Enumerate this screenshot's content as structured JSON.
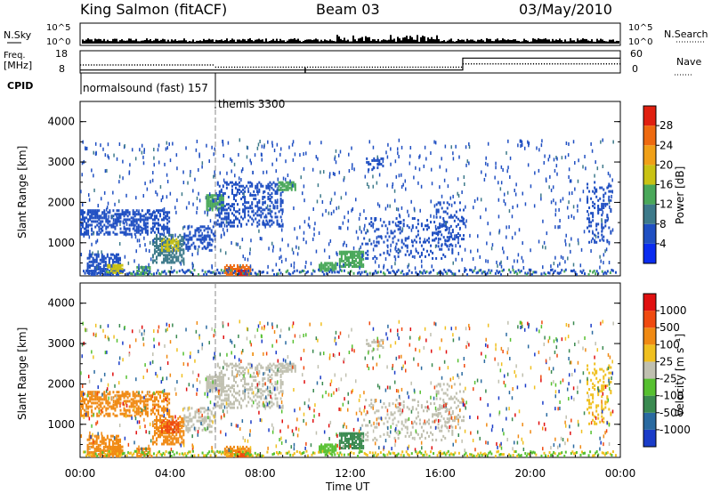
{
  "header": {
    "station": "King Salmon (fitACF)",
    "beam": "Beam 03",
    "date": "03/May/2010"
  },
  "chart_data": [
    {
      "type": "line",
      "panel": "noise",
      "left_label": "N.Sky",
      "right_label": "N.Search",
      "yticks_left": [
        "10^5",
        "10^0"
      ],
      "yticks_right": [
        "10^5",
        "10^0"
      ]
    },
    {
      "type": "line",
      "panel": "frequency",
      "left_label_line1": "Freq.",
      "left_label_line2": "[MHz]",
      "right_label": "Nave",
      "yticks_left": [
        "18",
        "8"
      ],
      "yticks_right": [
        "60",
        "0"
      ],
      "freq_mhz": {
        "x": [
          0,
          6,
          17,
          24
        ],
        "y": [
          11.5,
          10.5,
          12.0,
          12.0
        ]
      },
      "nave": {
        "x": [
          0,
          17,
          24
        ],
        "y": [
          8,
          40,
          40
        ]
      },
      "freq_dips_hours": [
        10.0
      ]
    },
    {
      "type": "table",
      "panel": "cpid",
      "label": "CPID",
      "segments": [
        {
          "start_hour": 0,
          "end_hour": 6,
          "text": "normalsound (fast) 157"
        },
        {
          "start_hour": 6,
          "end_hour": 24,
          "text": "themis 3300"
        }
      ]
    },
    {
      "type": "heatmap",
      "panel": "power",
      "ylabel": "Slant Range [km]",
      "colorbar_label": "Power [dB]",
      "colorbar_ticks": [
        "4",
        "8",
        "12",
        "16",
        "20",
        "24",
        "28"
      ],
      "colorbar_colors": [
        "#0a2cf0",
        "#1f4fc2",
        "#3d7a8a",
        "#4aa85a",
        "#c9c214",
        "#f0a018",
        "#ee6a10",
        "#e02010"
      ],
      "ylim": [
        180,
        4500
      ],
      "yticks": [
        1000,
        2000,
        3000,
        4000
      ],
      "xlim": [
        0,
        24
      ],
      "marker_hour": 6
    },
    {
      "type": "heatmap",
      "panel": "velocity",
      "ylabel": "Slant Range [km]",
      "colorbar_label": "Velocity [m s⁻¹]",
      "colorbar_ticks": [
        "1000",
        "500",
        "100",
        "25",
        "-25",
        "-100",
        "-500",
        "-1000"
      ],
      "colorbar_colors": [
        "#1a3cc8",
        "#2a6aa0",
        "#3a8a50",
        "#56c030",
        "#c0c0b0",
        "#f0c020",
        "#f08a14",
        "#f04a10",
        "#e01010"
      ],
      "ylim": [
        180,
        4500
      ],
      "yticks": [
        1000,
        2000,
        3000,
        4000
      ],
      "xlim": [
        0,
        24
      ],
      "marker_hour": 6
    }
  ],
  "xaxis": {
    "label": "Time UT",
    "ticks": [
      "00:00",
      "04:00",
      "08:00",
      "12:00",
      "16:00",
      "20:00",
      "00:00"
    ]
  }
}
